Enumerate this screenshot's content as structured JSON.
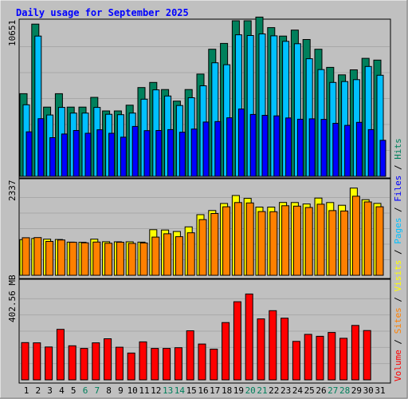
{
  "title": "Daily usage for September 2025",
  "colors": {
    "frame_bg": "#c0c0c0",
    "panel_bg": "#c0c0c0",
    "title": "#0000ff",
    "grid": "#a8a8a8",
    "text": "#000000",
    "weekend_day": "#00805c",
    "hits": "#00805c",
    "files": "#00c0ff",
    "pages": "#00c0ff",
    "visits": "#ffff00",
    "sites": "#ff8000",
    "volume": "#ff0000"
  },
  "top_scale_label": "10651",
  "mid_scale_label": "2337",
  "bot_scale_label": "402.56 MB",
  "legend_top": {
    "hits": "Hits",
    "files": "Files",
    "pages": "Pages",
    "sep": " / "
  },
  "legend_mid": {
    "visits": "Visits",
    "sites": "Sites",
    "sep": " / "
  },
  "legend_bot": {
    "volume": "Volume"
  },
  "chart_data": {
    "type": "bar",
    "title": "Daily usage for September 2025",
    "categories": [
      "1",
      "2",
      "3",
      "4",
      "5",
      "6",
      "7",
      "8",
      "9",
      "10",
      "11",
      "12",
      "13",
      "14",
      "15",
      "16",
      "17",
      "18",
      "19",
      "20",
      "21",
      "22",
      "23",
      "24",
      "25",
      "26",
      "27",
      "28",
      "29",
      "30",
      "31"
    ],
    "weekend_days": [
      "6",
      "7",
      "13",
      "14",
      "20",
      "21",
      "27",
      "28"
    ],
    "panels": [
      {
        "name": "hits-files-pages",
        "ymax": 10651,
        "series": [
          {
            "name": "Hits",
            "values": [
              5660,
              10420,
              4740,
              5660,
              4740,
              4740,
              5410,
              4480,
              4480,
              4870,
              6080,
              6430,
              5940,
              5150,
              5940,
              7000,
              8700,
              9100,
              10650,
              10650,
              10900,
              10180,
              9600,
              10010,
              9370,
              8700,
              7460,
              6950,
              7290,
              8080,
              7960
            ]
          },
          {
            "name": "Files",
            "values": [
              4900,
              9600,
              4200,
              4720,
              4330,
              4330,
              4720,
              4250,
              4220,
              4330,
              5280,
              5920,
              5500,
              4850,
              5380,
              6200,
              7770,
              7640,
              9690,
              9640,
              9750,
              9620,
              9240,
              9080,
              8050,
              7310,
              6430,
              6490,
              6620,
              7520,
              6920
            ]
          },
          {
            "name": "Pages",
            "values": [
              3050,
              3950,
              2650,
              2900,
              3140,
              2950,
              3190,
              2950,
              2680,
              3420,
              3130,
              3140,
              3200,
              3020,
              3240,
              3720,
              3750,
              4010,
              4610,
              4240,
              4180,
              4140,
              4000,
              3910,
              3940,
              3900,
              3630,
              3490,
              3700,
              3200,
              2470
            ]
          }
        ]
      },
      {
        "name": "visits-sites",
        "ymax": 2337,
        "series": [
          {
            "name": "Visits",
            "values": [
              892,
              923,
              904,
              896,
              831,
              826,
              904,
              841,
              838,
              838,
              831,
              1143,
              1135,
              1096,
              1212,
              1518,
              1622,
              1797,
              1997,
              1925,
              1707,
              1707,
              1823,
              1822,
              1785,
              1933,
              1822,
              1753,
              2184,
              1893,
              1800
            ]
          },
          {
            "name": "Sites",
            "values": [
              941,
              945,
              848,
              885,
              826,
              813,
              833,
              803,
              828,
              798,
              809,
              957,
              1041,
              966,
              1065,
              1395,
              1549,
              1716,
              1822,
              1812,
              1596,
              1591,
              1741,
              1732,
              1697,
              1779,
              1620,
              1610,
              1980,
              1838,
              1716
            ]
          }
        ]
      },
      {
        "name": "volume",
        "ymax": 402.56,
        "ylabel": "402.56 MB",
        "series": [
          {
            "name": "Volume",
            "values": [
              154,
              153,
              136,
              209,
              141,
              130,
              153,
              170,
              135,
              111,
              157,
              130,
              130,
              133,
              203,
              148,
              127,
              237,
              323,
              355,
              252,
              286,
              255,
              159,
              188,
              180,
              196,
              172,
              225,
              204,
              0
            ]
          }
        ]
      }
    ],
    "ylabel_top": "10651",
    "ylabel_mid": "2337",
    "ylabel_bot": "402.56 MB",
    "grid": true,
    "legend_position": "right-vertical"
  }
}
